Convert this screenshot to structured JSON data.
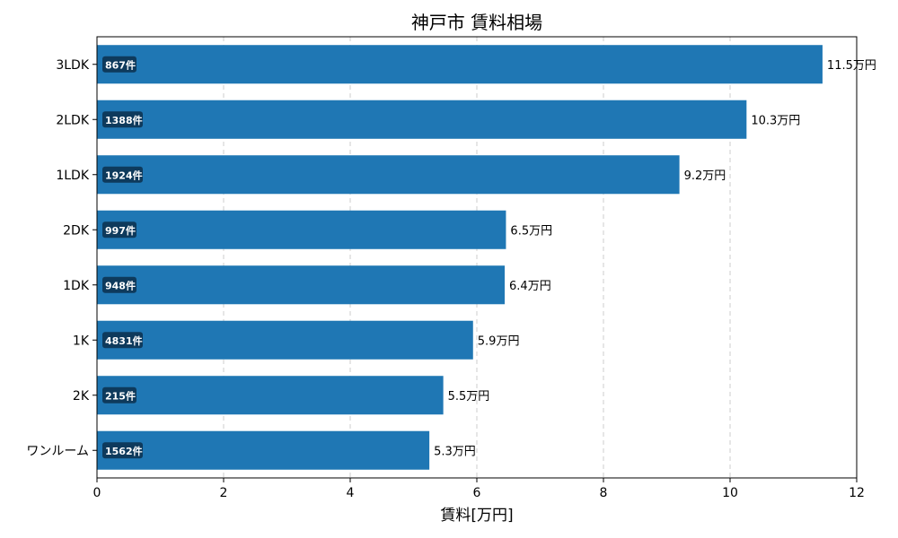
{
  "chart_data": {
    "type": "bar",
    "orientation": "horizontal",
    "title": "神戸市 賃料相場",
    "xlabel": "賃料[万円]",
    "ylabel": "",
    "xlim": [
      0,
      12
    ],
    "xticks": [
      0,
      2,
      4,
      6,
      8,
      10,
      12
    ],
    "grid": "x-dashed",
    "bar_color": "#1f77b4",
    "badge_color": "#0e3a5c",
    "categories": [
      "3LDK",
      "2LDK",
      "1LDK",
      "2DK",
      "1DK",
      "1K",
      "2K",
      "ワンルーム"
    ],
    "values": [
      11.46,
      10.26,
      9.2,
      6.46,
      6.44,
      5.94,
      5.47,
      5.25
    ],
    "value_labels": [
      "11.5万円",
      "10.3万円",
      "9.2万円",
      "6.5万円",
      "6.4万円",
      "5.9万円",
      "5.5万円",
      "5.3万円"
    ],
    "counts": [
      "867件",
      "1388件",
      "1924件",
      "997件",
      "948件",
      "4831件",
      "215件",
      "1562件"
    ]
  }
}
